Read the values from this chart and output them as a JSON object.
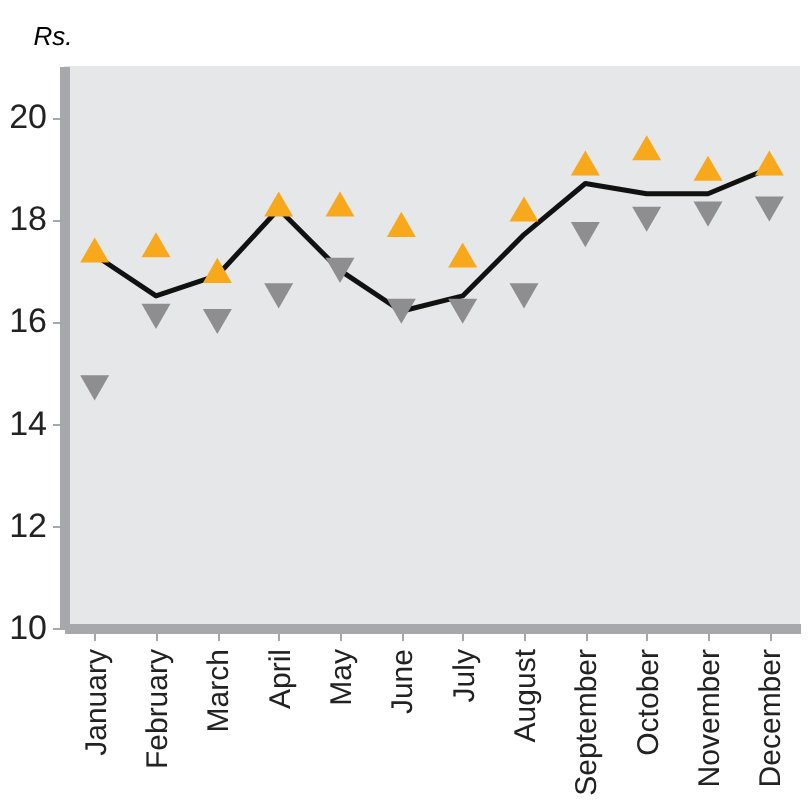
{
  "chart_data": {
    "type": "line",
    "ylabel": "Rs.",
    "categories": [
      "January",
      "February",
      "March",
      "April",
      "May",
      "June",
      "July",
      "August",
      "September",
      "October",
      "November",
      "December"
    ],
    "series": [
      {
        "color": "#111111",
        "marker": "none",
        "line_style": "solid",
        "values": [
          17.3,
          16.5,
          16.9,
          18.2,
          17.0,
          16.2,
          16.5,
          17.7,
          18.7,
          18.5,
          18.5,
          19.0
        ]
      },
      {
        "type": "scatter",
        "color": "#f7a81b",
        "marker": "triangle",
        "values": [
          17.4,
          17.5,
          17.0,
          18.3,
          18.3,
          17.9,
          17.3,
          18.2,
          19.1,
          19.4,
          19.0,
          19.1
        ]
      },
      {
        "type": "scatter",
        "color": "#8e8e90",
        "marker": "triangle-down",
        "values": [
          14.7,
          16.1,
          16.0,
          16.5,
          17.0,
          16.2,
          16.2,
          16.5,
          17.7,
          18.0,
          18.1,
          18.2
        ]
      }
    ],
    "ylim": [
      10,
      21
    ],
    "yticks": [
      10,
      12,
      14,
      16,
      18,
      20
    ],
    "grid": false
  }
}
